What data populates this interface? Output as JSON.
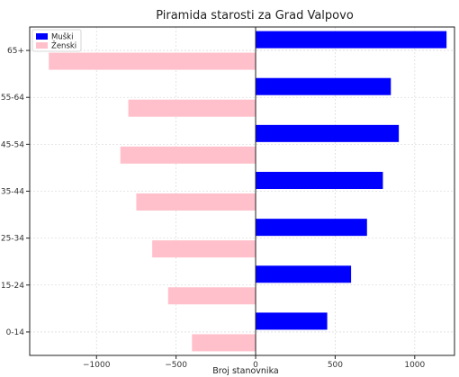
{
  "chart_data": {
    "type": "bar",
    "orientation": "horizontal",
    "title": "Piramida starosti za Grad Valpovo",
    "xlabel": "Broj stanovnika",
    "ylabel": "",
    "categories": [
      "0-14",
      "15-24",
      "25-34",
      "35-44",
      "45-54",
      "55-64",
      "65+"
    ],
    "series": [
      {
        "name": "Muški",
        "color": "#0000ff",
        "values": [
          450,
          600,
          700,
          800,
          900,
          850,
          1200
        ]
      },
      {
        "name": "Ženski",
        "color": "#ffc0cb",
        "values": [
          -400,
          -550,
          -650,
          -750,
          -850,
          -800,
          -1300
        ]
      }
    ],
    "xlim": [
      -1420,
      1250
    ],
    "xticks": [
      -1000,
      -500,
      0,
      500,
      1000
    ],
    "xtick_labels": [
      "−1000",
      "−500",
      "0",
      "500",
      "1000"
    ],
    "grid": true,
    "legend_position": "top-left"
  }
}
